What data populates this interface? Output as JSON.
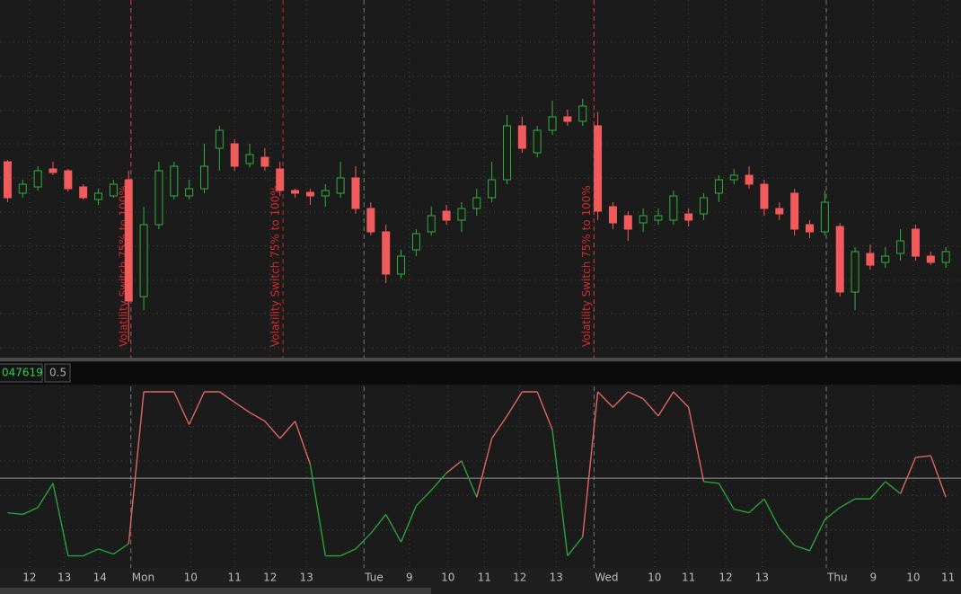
{
  "chart_data": [
    {
      "type": "candlestick",
      "x": [
        1,
        3,
        5,
        7,
        9,
        11,
        13,
        15,
        17,
        19,
        21,
        23,
        25,
        27,
        29,
        31,
        33,
        35,
        37,
        39,
        41,
        43,
        45,
        47,
        49,
        51,
        53,
        55,
        57,
        59,
        61,
        63,
        65,
        67,
        69,
        71,
        73,
        75,
        77,
        79,
        81,
        83,
        85,
        87,
        89,
        91,
        93,
        95,
        97,
        99,
        101,
        103,
        105,
        107,
        109,
        111,
        113,
        115,
        117,
        119,
        121,
        123,
        125
      ],
      "open": [
        220,
        185,
        192,
        212,
        210,
        192,
        178,
        182,
        200,
        70,
        150,
        182,
        182,
        190,
        235,
        240,
        218,
        225,
        212,
        188,
        186,
        182,
        185,
        202,
        168,
        142,
        95,
        122,
        142,
        165,
        155,
        168,
        180,
        200,
        260,
        230,
        255,
        270,
        265,
        260,
        170,
        160,
        152,
        155,
        155,
        162,
        162,
        185,
        200,
        205,
        195,
        168,
        185,
        150,
        142,
        148,
        75,
        118,
        108,
        118,
        145,
        115,
        108
      ],
      "high": [
        222,
        200,
        215,
        220,
        212,
        195,
        190,
        200,
        210,
        170,
        220,
        220,
        200,
        240,
        260,
        245,
        240,
        235,
        220,
        190,
        190,
        195,
        220,
        215,
        175,
        150,
        122,
        145,
        170,
        172,
        175,
        190,
        220,
        272,
        270,
        260,
        288,
        278,
        290,
        275,
        175,
        165,
        168,
        168,
        188,
        168,
        185,
        205,
        212,
        215,
        200,
        175,
        190,
        155,
        188,
        152,
        125,
        128,
        125,
        145,
        150,
        120,
        125
      ],
      "low": [
        175,
        180,
        188,
        205,
        187,
        178,
        172,
        180,
        20,
        55,
        145,
        178,
        178,
        185,
        210,
        210,
        214,
        210,
        182,
        180,
        172,
        170,
        180,
        162,
        138,
        85,
        90,
        115,
        138,
        150,
        142,
        160,
        175,
        195,
        230,
        225,
        250,
        260,
        260,
        155,
        145,
        132,
        142,
        150,
        150,
        148,
        155,
        175,
        195,
        190,
        160,
        155,
        138,
        135,
        138,
        70,
        55,
        100,
        102,
        110,
        110,
        105,
        102
      ],
      "close": [
        180,
        195,
        210,
        208,
        190,
        180,
        185,
        195,
        65,
        150,
        210,
        215,
        190,
        215,
        255,
        215,
        228,
        215,
        188,
        185,
        182,
        188,
        202,
        168,
        142,
        95,
        115,
        140,
        160,
        155,
        168,
        180,
        200,
        260,
        235,
        255,
        270,
        265,
        282,
        165,
        152,
        145,
        160,
        160,
        182,
        155,
        180,
        200,
        205,
        195,
        168,
        162,
        145,
        142,
        175,
        75,
        120,
        105,
        115,
        132,
        115,
        108,
        120
      ],
      "up_color": "#2fb03c",
      "down_color": "#f05b5b",
      "xlim": [
        0,
        127
      ],
      "ylim": [
        2,
        400
      ],
      "yticks": [
        13,
        51,
        88,
        126,
        164,
        202,
        240,
        277,
        315,
        353
      ],
      "xticks": [
        {
          "value": 3.9,
          "label": "12"
        },
        {
          "value": 8.5,
          "label": "13"
        },
        {
          "value": 13.2,
          "label": "14"
        },
        {
          "value": 17.3,
          "label": "Mon"
        },
        {
          "value": 25.2,
          "label": "10"
        },
        {
          "value": 31.0,
          "label": "11"
        },
        {
          "value": 35.7,
          "label": "12"
        },
        {
          "value": 40.5,
          "label": "13"
        },
        {
          "value": 48.1,
          "label": "Tue"
        },
        {
          "value": 54.1,
          "label": "9"
        },
        {
          "value": 59.2,
          "label": "10"
        },
        {
          "value": 64.0,
          "label": "11"
        },
        {
          "value": 68.7,
          "label": "12"
        },
        {
          "value": 73.5,
          "label": "13"
        },
        {
          "value": 78.5,
          "label": "Wed"
        },
        {
          "value": 86.5,
          "label": "10"
        },
        {
          "value": 91.0,
          "label": "11"
        },
        {
          "value": 95.9,
          "label": "12"
        },
        {
          "value": 100.7,
          "label": "13"
        },
        {
          "value": 109.2,
          "label": "Thu"
        },
        {
          "value": 115.4,
          "label": "9"
        },
        {
          "value": 120.7,
          "label": "10"
        },
        {
          "value": 125.3,
          "label": "11"
        }
      ],
      "separators": [
        17.3,
        48.1,
        78.5,
        109.2
      ],
      "annotation_color": "#d42a2a",
      "annotations": [
        {
          "x": 17.3,
          "text": "Volatility Switch 75% to 100%"
        },
        {
          "x": 37.4,
          "text": "Volatility Switch 75% to 100%"
        },
        {
          "x": 78.5,
          "text": "Volatility Switch 75% to 100%"
        }
      ]
    },
    {
      "type": "line",
      "x": [
        1,
        3,
        5,
        7,
        9,
        11,
        13,
        15,
        17,
        19,
        21,
        23,
        25,
        27,
        29,
        31,
        33,
        35,
        37,
        39,
        41,
        43,
        45,
        47,
        49,
        51,
        53,
        55,
        57,
        59,
        61,
        63,
        65,
        67,
        69,
        71,
        73,
        75,
        77,
        79,
        81,
        83,
        85,
        87,
        89,
        91,
        93,
        95,
        97,
        99,
        101,
        103,
        105,
        107,
        109,
        111,
        113,
        115,
        117,
        119,
        121,
        123,
        125
      ],
      "values": [
        0.3,
        0.29,
        0.33,
        0.47,
        0.05,
        0.05,
        0.09,
        0.06,
        0.12,
        1.0,
        1.0,
        1.0,
        0.81,
        1.0,
        1.0,
        0.94,
        0.88,
        0.83,
        0.73,
        0.83,
        0.58,
        0.05,
        0.05,
        0.09,
        0.18,
        0.29,
        0.13,
        0.34,
        0.43,
        0.53,
        0.6,
        0.39,
        0.73,
        0.86,
        1.0,
        1.0,
        0.78,
        0.05,
        0.16,
        1.0,
        0.91,
        1.0,
        0.96,
        0.86,
        1.0,
        0.91,
        0.48,
        0.47,
        0.32,
        0.3,
        0.38,
        0.21,
        0.11,
        0.08,
        0.26,
        0.33,
        0.38,
        0.38,
        0.48,
        0.41,
        0.62,
        0.63,
        0.39
      ],
      "up_color": "#e0665e",
      "down_color": "#2aa13a",
      "threshold": 0.5,
      "legend_value": "047619",
      "xlim": [
        0,
        127
      ],
      "ylim": [
        -0.02,
        1.0
      ],
      "yticks": [
        0.2,
        0.4,
        0.6,
        0.8
      ]
    }
  ]
}
